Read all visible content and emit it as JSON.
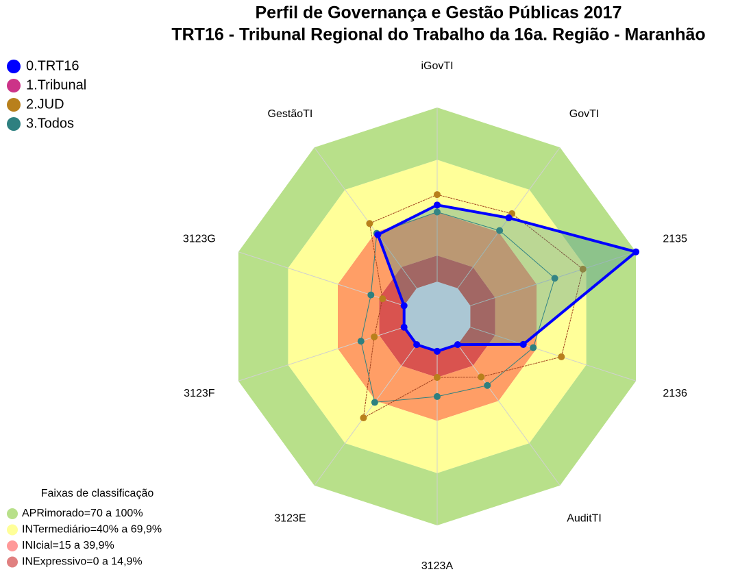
{
  "chart_data": {
    "type": "radar",
    "title": "Perfil de Governança e Gestão Públicas 2017",
    "subtitle": "TRT16 - Tribunal Regional do Trabalho da 16a. Região - Maranhão",
    "categories": [
      "iGovTI",
      "GovTI",
      "2135",
      "2136",
      "AuditTI",
      "3123A",
      "3123E",
      "3123F",
      "3123G",
      "GestãoTI"
    ],
    "rlim": [
      -20,
      100
    ],
    "series": [
      {
        "name": "0.TRT16",
        "color": "#0000ff",
        "values": [
          44,
          50,
          100,
          32,
          0,
          0,
          0,
          0,
          0,
          38
        ]
      },
      {
        "name": "1.Tribunal",
        "color": "#cc3388",
        "values": [
          44,
          50,
          100,
          32,
          0,
          0,
          0,
          0,
          0,
          38
        ]
      },
      {
        "name": "2.JUD",
        "color": "#b8801c",
        "values": [
          50,
          53,
          68,
          55,
          23,
          15,
          52,
          18,
          13,
          46
        ]
      },
      {
        "name": "3.Todos",
        "color": "#2e8080",
        "values": [
          40,
          41,
          51,
          38,
          29,
          26,
          41,
          26,
          20,
          39
        ]
      }
    ],
    "bands_title": "Faixas de classificação",
    "bands": [
      {
        "label": "INExpressivo=0 a 14,9%",
        "from": 0,
        "to": 15,
        "color": "#d9534f",
        "legend_color": "#e08080"
      },
      {
        "label": "INIcial=15 a 39,9%",
        "from": 15,
        "to": 40,
        "color": "#ff9e66",
        "legend_color": "#ff9999"
      },
      {
        "label": "INTermediário=40% a 69,9%",
        "from": 40,
        "to": 70,
        "color": "#ffff99",
        "legend_color": "#ffff99"
      },
      {
        "label": "APRimorado=70 a 100%",
        "from": 70,
        "to": 100,
        "color": "#b8e08a",
        "legend_color": "#b8e08a"
      }
    ]
  }
}
